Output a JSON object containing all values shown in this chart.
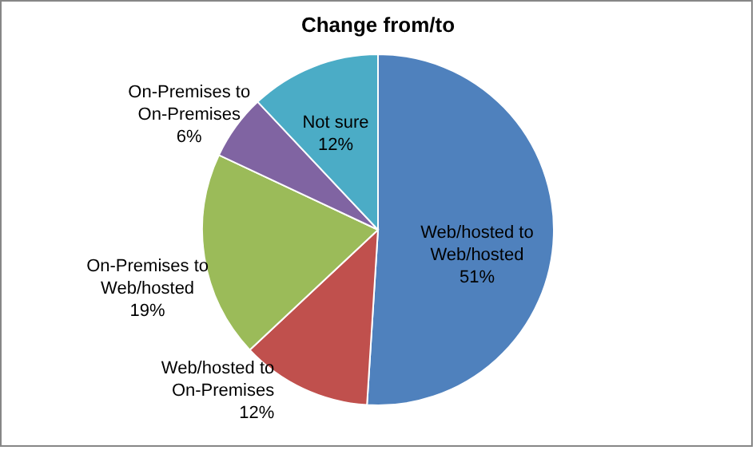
{
  "chart_data": {
    "type": "pie",
    "title": "Change from/to",
    "categories": [
      "Web/hosted to Web/hosted",
      "Web/hosted to On-Premises",
      "On-Premises to Web/hosted",
      "On-Premises to On-Premises",
      "Not sure"
    ],
    "values": [
      51,
      12,
      19,
      6,
      12
    ],
    "value_labels": [
      "51%",
      "12%",
      "19%",
      "6%",
      "12%"
    ],
    "colors": [
      "#4f81bd",
      "#c0504d",
      "#9bbb59",
      "#8064a2",
      "#4bacc6"
    ]
  }
}
